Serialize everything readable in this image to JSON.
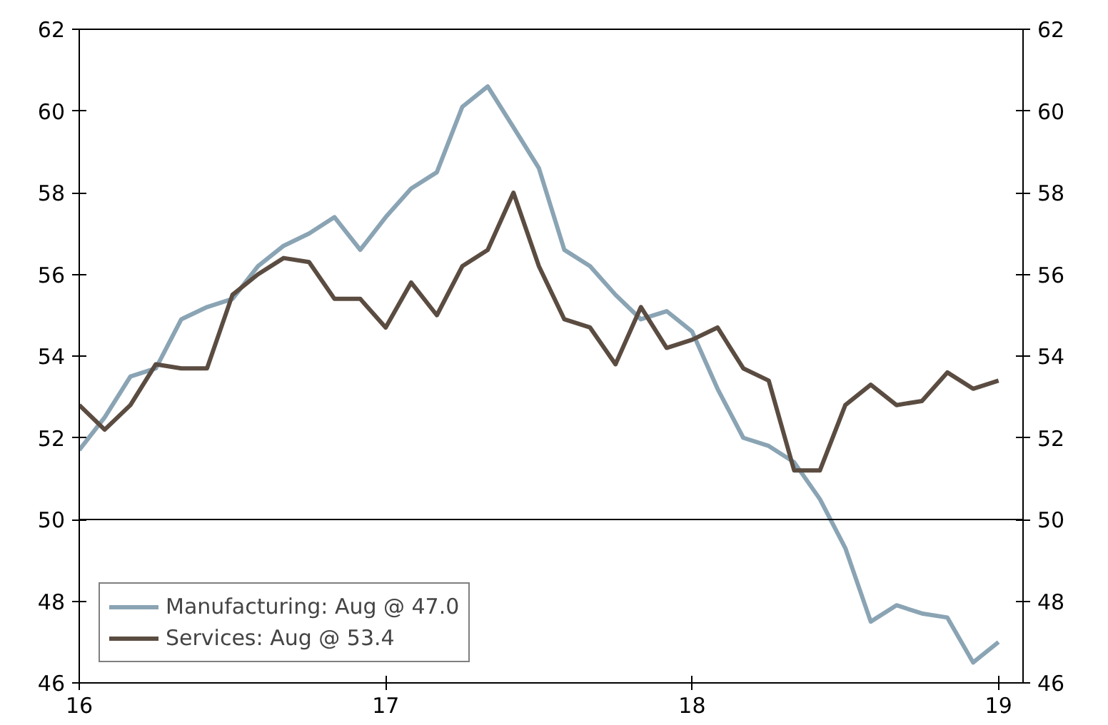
{
  "chart_data": {
    "type": "line",
    "x": [
      16,
      16.083,
      16.167,
      16.25,
      16.333,
      16.417,
      16.5,
      16.583,
      16.667,
      16.75,
      16.833,
      16.917,
      17,
      17.083,
      17.167,
      17.25,
      17.333,
      17.417,
      17.5,
      17.583,
      17.667,
      17.75,
      17.833,
      17.917,
      18,
      18.083,
      18.167,
      18.25,
      18.333,
      18.417,
      18.5,
      18.583,
      18.667,
      18.75,
      18.833,
      18.917,
      19
    ],
    "series": [
      {
        "name": "Manufacturing: Aug @ 47.0",
        "color": "#8aa4b4",
        "values": [
          51.7,
          52.5,
          53.5,
          53.7,
          54.9,
          55.2,
          55.4,
          56.2,
          56.7,
          57.0,
          57.4,
          56.6,
          57.4,
          58.1,
          58.5,
          60.1,
          60.6,
          59.6,
          58.6,
          56.6,
          56.2,
          55.5,
          54.9,
          55.1,
          54.6,
          53.2,
          52.0,
          51.8,
          51.4,
          50.5,
          49.3,
          47.5,
          47.9,
          47.7,
          47.6,
          46.5,
          47.0
        ]
      },
      {
        "name": "Services: Aug @ 53.4",
        "color": "#5b4c41",
        "values": [
          52.8,
          52.2,
          52.8,
          53.8,
          53.7,
          53.7,
          55.5,
          56.0,
          56.4,
          56.3,
          55.4,
          55.4,
          54.7,
          55.8,
          55.0,
          56.2,
          56.6,
          58.0,
          56.2,
          54.9,
          54.7,
          53.8,
          55.2,
          54.2,
          54.4,
          54.7,
          53.7,
          53.4,
          51.2,
          51.2,
          52.8,
          53.3,
          52.8,
          52.9,
          53.6,
          53.2,
          53.4
        ]
      }
    ],
    "xlim": [
      16,
      19.08
    ],
    "xticks": [
      16,
      17,
      18,
      19
    ],
    "ylim": [
      46,
      62
    ],
    "yticks": [
      46,
      48,
      50,
      52,
      54,
      56,
      58,
      60,
      62
    ],
    "y2lim": [
      46,
      62
    ],
    "y2ticks": [
      46,
      48,
      50,
      52,
      54,
      56,
      58,
      60,
      62
    ],
    "ref_lines": [
      {
        "axis": "y",
        "value": 50,
        "color": "#000000"
      }
    ],
    "legend": "bottom left",
    "line_style": "solid"
  }
}
